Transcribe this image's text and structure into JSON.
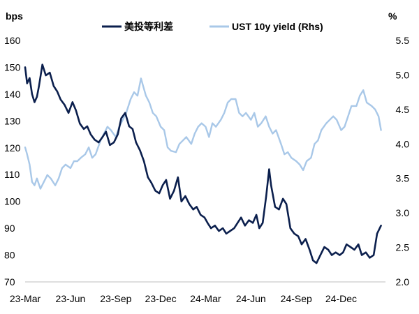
{
  "chart_data": {
    "type": "line",
    "colors": {
      "spread": "#0b1f4d",
      "yield": "#a9c8e8",
      "axis": "#bfbfbf"
    },
    "legend": {
      "placement": "top",
      "items": [
        {
          "key": "spread",
          "label": "美投等利差"
        },
        {
          "key": "yield",
          "label": "UST 10y yield (Rhs)"
        }
      ]
    },
    "y_left": {
      "unit": "bps",
      "range": [
        70,
        160
      ],
      "ticks": [
        "160",
        "150",
        "140",
        "130",
        "120",
        "110",
        "100",
        "90",
        "80",
        "70"
      ]
    },
    "y_right": {
      "unit": "%",
      "range": [
        2.0,
        5.5
      ],
      "ticks": [
        "5.5",
        "5.0",
        "4.5",
        "4.0",
        "3.5",
        "3.0",
        "2.5",
        "2.0"
      ]
    },
    "x_axis": {
      "range": [
        "2023-03-01",
        "2025-03-01"
      ],
      "ticks": [
        "23-Mar",
        "23-Jun",
        "23-Sep",
        "23-Dec",
        "24-Mar",
        "24-Jun",
        "24-Sep",
        "24-Dec"
      ]
    },
    "series": [
      {
        "name": "美投等利差",
        "axis": "left",
        "x": [
          "2023-03-01",
          "2023-03-05",
          "2023-03-10",
          "2023-03-15",
          "2023-03-20",
          "2023-03-25",
          "2023-03-29",
          "2023-04-05",
          "2023-04-12",
          "2023-04-20",
          "2023-04-28",
          "2023-05-05",
          "2023-05-12",
          "2023-05-20",
          "2023-05-28",
          "2023-06-05",
          "2023-06-12",
          "2023-06-20",
          "2023-06-28",
          "2023-07-05",
          "2023-07-12",
          "2023-07-20",
          "2023-07-28",
          "2023-08-05",
          "2023-08-12",
          "2023-08-20",
          "2023-08-28",
          "2023-09-05",
          "2023-09-12",
          "2023-09-20",
          "2023-09-28",
          "2023-10-05",
          "2023-10-12",
          "2023-10-20",
          "2023-10-28",
          "2023-11-05",
          "2023-11-12",
          "2023-11-20",
          "2023-11-28",
          "2023-12-05",
          "2023-12-12",
          "2023-12-20",
          "2023-12-28",
          "2024-01-05",
          "2024-01-12",
          "2024-01-20",
          "2024-01-28",
          "2024-02-05",
          "2024-02-12",
          "2024-02-20",
          "2024-02-28",
          "2024-03-05",
          "2024-03-12",
          "2024-03-20",
          "2024-03-28",
          "2024-04-05",
          "2024-04-12",
          "2024-04-20",
          "2024-04-28",
          "2024-05-05",
          "2024-05-12",
          "2024-05-20",
          "2024-05-28",
          "2024-06-05",
          "2024-06-12",
          "2024-06-18",
          "2024-06-25",
          "2024-07-02",
          "2024-07-08",
          "2024-07-12",
          "2024-07-20",
          "2024-07-28",
          "2024-08-05",
          "2024-08-12",
          "2024-08-20",
          "2024-08-28",
          "2024-09-05",
          "2024-09-12",
          "2024-09-20",
          "2024-09-28",
          "2024-10-05",
          "2024-10-12",
          "2024-10-20",
          "2024-10-28",
          "2024-11-05",
          "2024-11-12",
          "2024-11-20",
          "2024-11-28",
          "2024-12-05",
          "2024-12-12",
          "2024-12-20",
          "2024-12-28",
          "2025-01-05",
          "2025-01-12",
          "2025-01-20",
          "2025-01-28",
          "2025-02-05",
          "2025-02-12",
          "2025-02-20"
        ],
        "y": [
          150,
          144,
          146,
          140,
          137,
          139,
          143,
          151,
          147,
          148,
          143,
          141,
          138,
          136,
          133,
          137,
          134,
          129,
          127,
          128,
          125,
          123,
          122,
          124,
          126,
          121,
          122,
          125,
          131,
          133,
          128,
          127,
          122,
          119,
          115,
          109,
          107,
          104,
          103,
          106,
          108,
          101,
          104,
          109,
          100,
          102,
          99,
          97,
          98,
          95,
          94,
          92,
          90,
          91,
          89,
          90,
          88,
          89,
          90,
          92,
          94,
          91,
          93,
          92,
          95,
          90,
          92,
          102,
          112,
          106,
          98,
          97,
          101,
          99,
          90,
          88,
          87,
          84,
          86,
          82,
          78,
          77,
          80,
          83,
          82,
          80,
          81,
          80,
          81,
          84,
          83,
          82,
          84,
          80,
          81,
          79,
          80,
          88,
          91
        ]
      },
      {
        "name": "UST 10y yield (Rhs)",
        "axis": "right",
        "x": [
          "2023-03-01",
          "2023-03-05",
          "2023-03-10",
          "2023-03-15",
          "2023-03-20",
          "2023-03-25",
          "2023-04-01",
          "2023-04-08",
          "2023-04-15",
          "2023-04-22",
          "2023-05-01",
          "2023-05-08",
          "2023-05-15",
          "2023-05-22",
          "2023-06-01",
          "2023-06-08",
          "2023-06-15",
          "2023-06-22",
          "2023-07-01",
          "2023-07-08",
          "2023-07-15",
          "2023-07-22",
          "2023-08-01",
          "2023-08-08",
          "2023-08-15",
          "2023-08-22",
          "2023-09-01",
          "2023-09-08",
          "2023-09-15",
          "2023-09-22",
          "2023-10-01",
          "2023-10-08",
          "2023-10-15",
          "2023-10-22",
          "2023-11-01",
          "2023-11-08",
          "2023-11-15",
          "2023-11-22",
          "2023-12-01",
          "2023-12-08",
          "2023-12-15",
          "2023-12-22",
          "2024-01-01",
          "2024-01-08",
          "2024-01-15",
          "2024-01-22",
          "2024-02-01",
          "2024-02-08",
          "2024-02-15",
          "2024-02-22",
          "2024-03-01",
          "2024-03-08",
          "2024-03-15",
          "2024-03-22",
          "2024-04-01",
          "2024-04-08",
          "2024-04-15",
          "2024-04-22",
          "2024-05-01",
          "2024-05-08",
          "2024-05-15",
          "2024-05-22",
          "2024-06-01",
          "2024-06-08",
          "2024-06-15",
          "2024-06-22",
          "2024-07-01",
          "2024-07-08",
          "2024-07-15",
          "2024-07-22",
          "2024-08-01",
          "2024-08-08",
          "2024-08-15",
          "2024-08-22",
          "2024-09-01",
          "2024-09-08",
          "2024-09-15",
          "2024-09-22",
          "2024-10-01",
          "2024-10-08",
          "2024-10-15",
          "2024-10-22",
          "2024-11-01",
          "2024-11-08",
          "2024-11-15",
          "2024-11-22",
          "2024-12-01",
          "2024-12-08",
          "2024-12-15",
          "2024-12-22",
          "2025-01-01",
          "2025-01-08",
          "2025-01-15",
          "2025-01-22",
          "2025-02-01",
          "2025-02-08",
          "2025-02-15",
          "2025-02-20"
        ],
        "y": [
          3.95,
          3.85,
          3.7,
          3.45,
          3.4,
          3.5,
          3.35,
          3.45,
          3.55,
          3.5,
          3.4,
          3.5,
          3.65,
          3.7,
          3.65,
          3.75,
          3.75,
          3.8,
          3.85,
          3.95,
          3.8,
          3.85,
          4.05,
          4.15,
          4.25,
          4.2,
          4.1,
          4.25,
          4.35,
          4.45,
          4.65,
          4.75,
          4.7,
          4.95,
          4.7,
          4.6,
          4.45,
          4.4,
          4.25,
          4.2,
          3.95,
          3.9,
          3.88,
          4.0,
          4.05,
          4.1,
          4.0,
          4.15,
          4.25,
          4.3,
          4.25,
          4.1,
          4.3,
          4.25,
          4.35,
          4.45,
          4.6,
          4.65,
          4.65,
          4.45,
          4.4,
          4.45,
          4.35,
          4.45,
          4.25,
          4.3,
          4.4,
          4.25,
          4.15,
          4.2,
          4.0,
          3.85,
          3.88,
          3.8,
          3.75,
          3.7,
          3.62,
          3.75,
          3.8,
          4.0,
          4.05,
          4.2,
          4.3,
          4.35,
          4.4,
          4.35,
          4.2,
          4.25,
          4.4,
          4.55,
          4.55,
          4.7,
          4.78,
          4.6,
          4.55,
          4.5,
          4.4,
          4.2
        ]
      }
    ]
  }
}
